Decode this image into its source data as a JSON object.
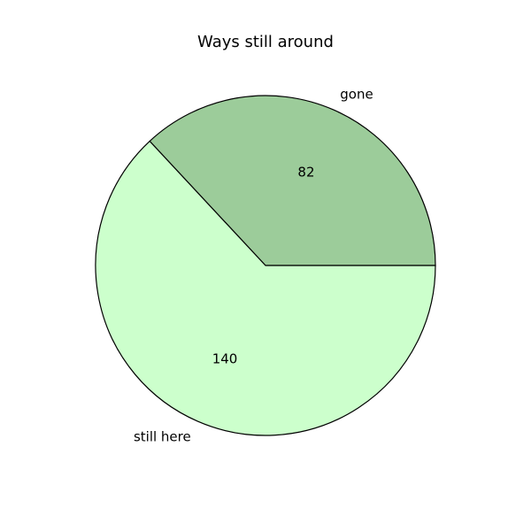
{
  "chart_data": {
    "type": "pie",
    "title": "Ways still around",
    "categories": [
      "gone",
      "still here"
    ],
    "values": [
      82,
      140
    ],
    "colors": [
      "#9ccc9a",
      "#ccffcc"
    ],
    "value_labels": [
      "82",
      "140"
    ],
    "start_angle_deg": 0,
    "direction": "counterclockwise",
    "legend": "none",
    "grid": false
  }
}
